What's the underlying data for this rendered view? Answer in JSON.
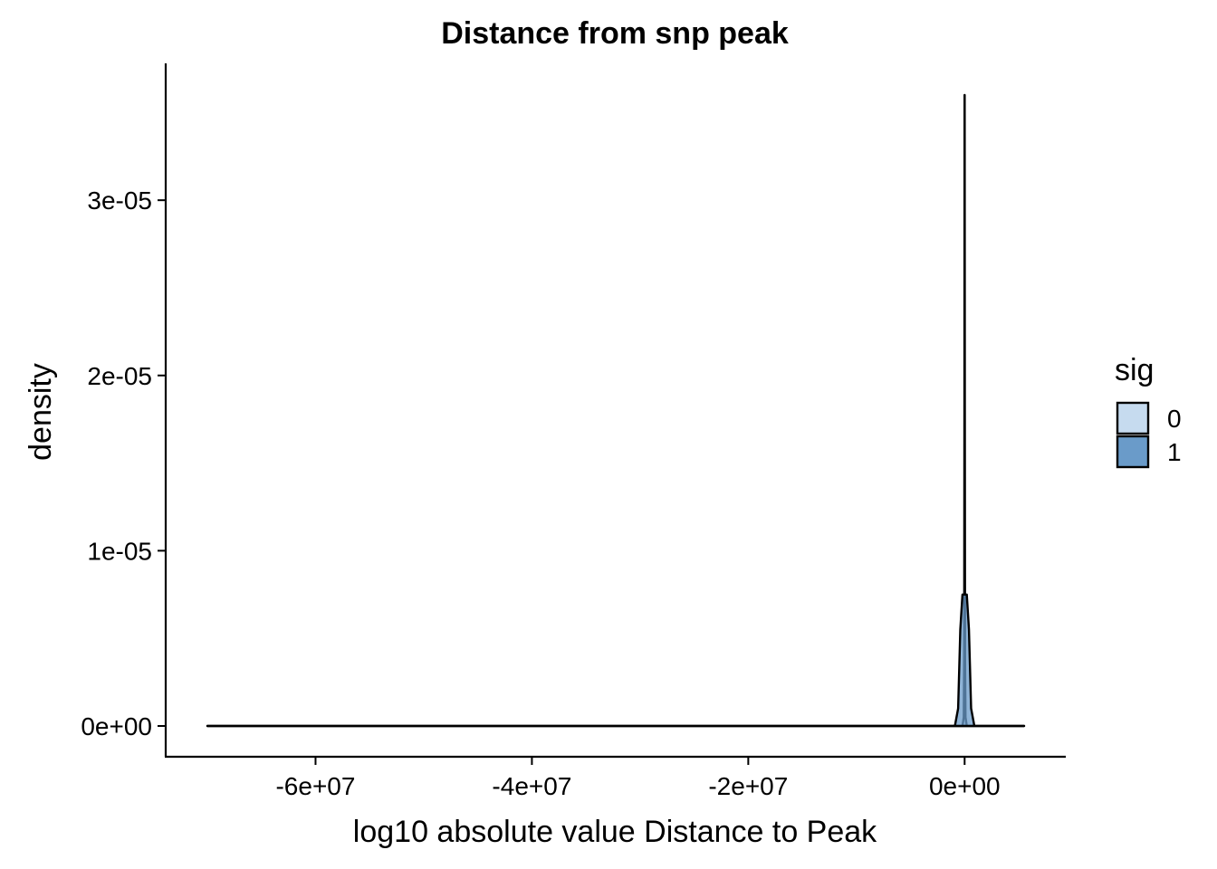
{
  "chart_data": {
    "type": "area",
    "title": "Distance from snp peak",
    "xlabel": "log10 absolute value Distance to Peak",
    "ylabel": "density",
    "xlim": [
      -70000000,
      5500000
    ],
    "ylim": [
      0,
      3.6e-05
    ],
    "x_ticks": [
      -60000000,
      -40000000,
      -20000000,
      0
    ],
    "x_tick_labels": [
      "-6e+07",
      "-4e+07",
      "-2e+07",
      "0e+00"
    ],
    "y_ticks": [
      0,
      1e-05,
      2e-05,
      3e-05
    ],
    "y_tick_labels": [
      "0e+00",
      "1e-05",
      "2e-05",
      "3e-05"
    ],
    "grid": false,
    "legend": {
      "title": "sig",
      "placement": "right",
      "entries": [
        {
          "label": "0",
          "color": "#c6dbef"
        },
        {
          "label": "1",
          "color": "#6a9bc9"
        }
      ]
    },
    "series": [
      {
        "key": "0",
        "fill": "#c6dbef",
        "opacity": 0.75,
        "points": [
          [
            -70000000,
            0
          ],
          [
            -200000,
            0
          ],
          [
            -80000,
            5e-07
          ],
          [
            -40000,
            4e-06
          ],
          [
            -20000,
            1.8e-05
          ],
          [
            -5000,
            3.6e-05
          ],
          [
            5000,
            3.6e-05
          ],
          [
            20000,
            1.8e-05
          ],
          [
            40000,
            4e-06
          ],
          [
            80000,
            5e-07
          ],
          [
            200000,
            0
          ],
          [
            5500000,
            0
          ]
        ]
      },
      {
        "key": "1",
        "fill": "#6a9bc9",
        "opacity": 0.75,
        "points": [
          [
            -70000000,
            0
          ],
          [
            -900000,
            0
          ],
          [
            -600000,
            1e-06
          ],
          [
            -400000,
            5.5e-06
          ],
          [
            -200000,
            7.5e-06
          ],
          [
            200000,
            7.5e-06
          ],
          [
            400000,
            5.5e-06
          ],
          [
            600000,
            1e-06
          ],
          [
            900000,
            0
          ],
          [
            5500000,
            0
          ]
        ]
      }
    ]
  }
}
